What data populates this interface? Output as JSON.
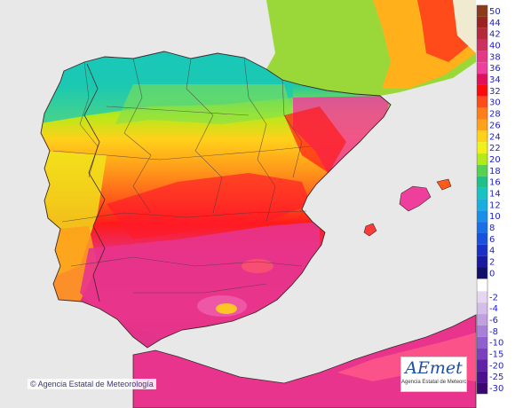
{
  "credit": "© Agencia Estatal de Meteorología",
  "logo": {
    "title": "AEmet",
    "subtitle": "Agencia Estatal de Meteorología"
  },
  "legend": {
    "entries": [
      {
        "label": "50",
        "color": "#8c3b1a"
      },
      {
        "label": "44",
        "color": "#9c2222"
      },
      {
        "label": "42",
        "color": "#b52a3a"
      },
      {
        "label": "40",
        "color": "#cf2f5f"
      },
      {
        "label": "38",
        "color": "#e23a86"
      },
      {
        "label": "36",
        "color": "#ee3f9c"
      },
      {
        "label": "34",
        "color": "#e0105a"
      },
      {
        "label": "32",
        "color": "#ff0a0a"
      },
      {
        "label": "30",
        "color": "#ff4a1a"
      },
      {
        "label": "28",
        "color": "#ff7d1a"
      },
      {
        "label": "26",
        "color": "#ffa21a"
      },
      {
        "label": "24",
        "color": "#ffd11a"
      },
      {
        "label": "22",
        "color": "#f0f01a"
      },
      {
        "label": "20",
        "color": "#b5ea1a"
      },
      {
        "label": "18",
        "color": "#56d250"
      },
      {
        "label": "16",
        "color": "#20c08a"
      },
      {
        "label": "14",
        "color": "#1ac3c3"
      },
      {
        "label": "12",
        "color": "#1aaee0"
      },
      {
        "label": "10",
        "color": "#1a8ee8"
      },
      {
        "label": "8",
        "color": "#1a6ee8"
      },
      {
        "label": "6",
        "color": "#1a50e0"
      },
      {
        "label": "4",
        "color": "#1a30c8"
      },
      {
        "label": "2",
        "color": "#1a1aa0"
      },
      {
        "label": "0",
        "color": "#10106a"
      },
      {
        "label": "-2",
        "color": "#e6d6f0"
      },
      {
        "label": "-4",
        "color": "#d4bde8"
      },
      {
        "label": "-6",
        "color": "#c0a0e0"
      },
      {
        "label": "-8",
        "color": "#a880d8"
      },
      {
        "label": "-10",
        "color": "#9060d0"
      },
      {
        "label": "-15",
        "color": "#7a40c0"
      },
      {
        "label": "-20",
        "color": "#6020a8"
      },
      {
        "label": "-25",
        "color": "#4c1090"
      },
      {
        "label": "-30",
        "color": "#3a0870"
      }
    ]
  },
  "colors": {
    "sea": "#e8e8e8",
    "coastline": "#3a2a2a",
    "border": "#4a3a3a"
  }
}
